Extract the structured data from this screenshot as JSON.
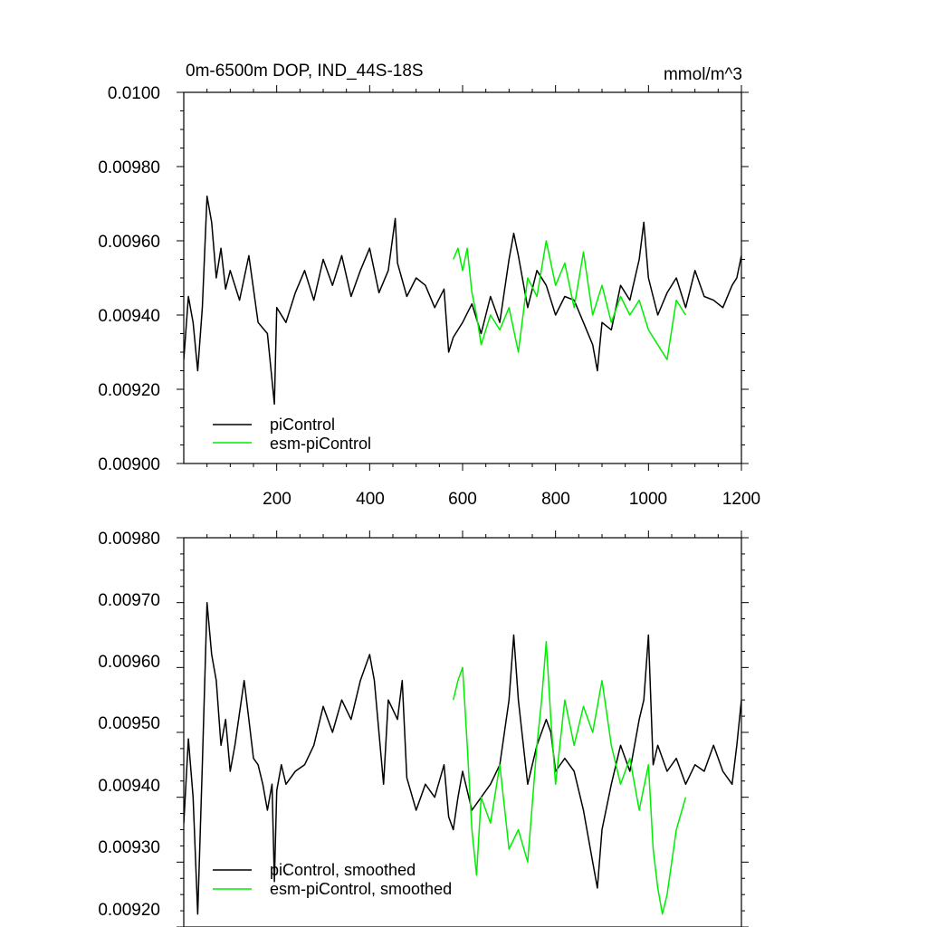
{
  "chart_data": [
    {
      "type": "line",
      "title": "0m-6500m DOP, IND_44S-18S",
      "units": "mmol/m^3",
      "xlim": [
        0,
        1200
      ],
      "ylim": [
        0.009,
        0.01
      ],
      "x_tick_values": [
        200,
        400,
        600,
        800,
        1000,
        1200
      ],
      "x_tick_labels": [
        "200",
        "400",
        "600",
        "800",
        "1000",
        "1200"
      ],
      "y_tick_values": [
        0.009,
        0.0092,
        0.0094,
        0.0096,
        0.0098,
        0.01
      ],
      "y_tick_labels": [
        "0.00900",
        "0.00920",
        "0.00940",
        "0.00960",
        "0.00980",
        "0.0100"
      ],
      "legend_placement": "bottom-left",
      "series": [
        {
          "name": "piControl",
          "color": "#000000",
          "x": [
            0,
            10,
            20,
            30,
            40,
            50,
            60,
            70,
            80,
            90,
            100,
            120,
            140,
            160,
            180,
            195,
            200,
            220,
            240,
            260,
            280,
            300,
            320,
            340,
            360,
            380,
            400,
            420,
            440,
            455,
            460,
            480,
            500,
            520,
            540,
            560,
            570,
            580,
            600,
            620,
            640,
            660,
            680,
            700,
            710,
            720,
            740,
            760,
            780,
            800,
            820,
            840,
            860,
            880,
            890,
            900,
            920,
            940,
            960,
            980,
            990,
            1000,
            1020,
            1040,
            1060,
            1080,
            1100,
            1120,
            1140,
            1160,
            1180,
            1190,
            1200
          ],
          "y": [
            0.00928,
            0.00945,
            0.00938,
            0.00925,
            0.00942,
            0.00972,
            0.00965,
            0.0095,
            0.00958,
            0.00947,
            0.00952,
            0.00944,
            0.00956,
            0.00938,
            0.00935,
            0.00916,
            0.00942,
            0.00938,
            0.00946,
            0.00952,
            0.00944,
            0.00955,
            0.00948,
            0.00956,
            0.00945,
            0.00952,
            0.00958,
            0.00946,
            0.00952,
            0.00966,
            0.00954,
            0.00945,
            0.0095,
            0.00948,
            0.00942,
            0.00947,
            0.0093,
            0.00934,
            0.00938,
            0.00943,
            0.00935,
            0.00945,
            0.00938,
            0.00955,
            0.00962,
            0.00956,
            0.00942,
            0.00952,
            0.00948,
            0.0094,
            0.00945,
            0.00944,
            0.00938,
            0.00932,
            0.00925,
            0.00938,
            0.00936,
            0.00948,
            0.00944,
            0.00955,
            0.00965,
            0.0095,
            0.0094,
            0.00946,
            0.0095,
            0.00942,
            0.00952,
            0.00945,
            0.00944,
            0.00942,
            0.00948,
            0.0095,
            0.00956
          ]
        },
        {
          "name": "esm-piControl",
          "color": "#00ee00",
          "x": [
            580,
            590,
            600,
            610,
            620,
            630,
            640,
            660,
            680,
            700,
            720,
            740,
            760,
            780,
            800,
            820,
            840,
            860,
            880,
            900,
            920,
            940,
            960,
            980,
            1000,
            1020,
            1040,
            1060,
            1080
          ],
          "y": [
            0.00955,
            0.00958,
            0.00952,
            0.00958,
            0.00946,
            0.0094,
            0.00932,
            0.0094,
            0.00936,
            0.00942,
            0.0093,
            0.0095,
            0.00945,
            0.0096,
            0.00948,
            0.00954,
            0.00942,
            0.00957,
            0.0094,
            0.00948,
            0.00938,
            0.00945,
            0.0094,
            0.00944,
            0.00936,
            0.00932,
            0.00928,
            0.00944,
            0.0094
          ]
        }
      ]
    },
    {
      "type": "line",
      "xlim": [
        0,
        1200
      ],
      "ylim": [
        0.0092,
        0.0098
      ],
      "x_tick_values": [
        200,
        400,
        600,
        800,
        1000,
        1200
      ],
      "y_tick_values": [
        0.0092,
        0.0093,
        0.0094,
        0.0095,
        0.0096,
        0.0097,
        0.0098
      ],
      "y_tick_labels": [
        "0.00920",
        "0.00930",
        "0.00940",
        "0.00950",
        "0.00960",
        "0.00970",
        "0.00980"
      ],
      "legend_placement": "bottom-left",
      "series": [
        {
          "name": "piControl, smoothed",
          "color": "#000000",
          "x": [
            0,
            10,
            20,
            30,
            40,
            50,
            60,
            70,
            80,
            90,
            100,
            110,
            120,
            130,
            140,
            150,
            160,
            170,
            180,
            190,
            195,
            200,
            210,
            220,
            240,
            260,
            280,
            300,
            320,
            340,
            360,
            380,
            400,
            410,
            420,
            430,
            440,
            460,
            470,
            480,
            500,
            520,
            540,
            560,
            570,
            580,
            590,
            600,
            620,
            640,
            660,
            680,
            700,
            710,
            720,
            740,
            760,
            780,
            790,
            800,
            820,
            840,
            860,
            880,
            890,
            900,
            920,
            940,
            960,
            980,
            990,
            1000,
            1010,
            1020,
            1040,
            1060,
            1080,
            1100,
            1120,
            1140,
            1160,
            1180,
            1190,
            1200
          ],
          "y": [
            0.00936,
            0.00949,
            0.0094,
            0.00922,
            0.00945,
            0.0097,
            0.00962,
            0.00958,
            0.00948,
            0.00952,
            0.00944,
            0.00948,
            0.00953,
            0.00958,
            0.00952,
            0.00946,
            0.00945,
            0.00942,
            0.00938,
            0.00942,
            0.00927,
            0.00941,
            0.00945,
            0.00942,
            0.00944,
            0.00945,
            0.00948,
            0.00954,
            0.0095,
            0.00955,
            0.00952,
            0.00958,
            0.00962,
            0.00958,
            0.0095,
            0.00942,
            0.00955,
            0.00952,
            0.00958,
            0.00943,
            0.00938,
            0.00942,
            0.0094,
            0.00945,
            0.00937,
            0.00935,
            0.0094,
            0.00944,
            0.00938,
            0.0094,
            0.00942,
            0.00945,
            0.00955,
            0.00965,
            0.00955,
            0.00942,
            0.00948,
            0.00952,
            0.0095,
            0.00944,
            0.00946,
            0.00944,
            0.00938,
            0.0093,
            0.00926,
            0.00935,
            0.00942,
            0.00948,
            0.00944,
            0.00952,
            0.00955,
            0.00965,
            0.00945,
            0.00948,
            0.00944,
            0.00946,
            0.00942,
            0.00945,
            0.00944,
            0.00948,
            0.00944,
            0.00942,
            0.00948,
            0.00955
          ]
        },
        {
          "name": "esm-piControl, smoothed",
          "color": "#00ee00",
          "x": [
            580,
            590,
            600,
            610,
            620,
            630,
            640,
            660,
            680,
            700,
            720,
            740,
            760,
            770,
            780,
            790,
            800,
            820,
            840,
            860,
            870,
            880,
            900,
            920,
            940,
            960,
            980,
            1000,
            1010,
            1020,
            1030,
            1040,
            1060,
            1080
          ],
          "y": [
            0.00955,
            0.00958,
            0.0096,
            0.00948,
            0.00935,
            0.00928,
            0.0094,
            0.00936,
            0.00945,
            0.00932,
            0.00935,
            0.0093,
            0.00948,
            0.00955,
            0.00964,
            0.00952,
            0.00942,
            0.00955,
            0.00948,
            0.00954,
            0.00952,
            0.0095,
            0.00958,
            0.00948,
            0.00942,
            0.00946,
            0.00938,
            0.00945,
            0.00932,
            0.00926,
            0.00922,
            0.00925,
            0.00935,
            0.0094
          ]
        }
      ]
    }
  ]
}
